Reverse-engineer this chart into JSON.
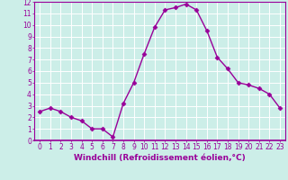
{
  "x": [
    0,
    1,
    2,
    3,
    4,
    5,
    6,
    7,
    8,
    9,
    10,
    11,
    12,
    13,
    14,
    15,
    16,
    17,
    18,
    19,
    20,
    21,
    22,
    23
  ],
  "y": [
    2.5,
    2.8,
    2.5,
    2.0,
    1.7,
    1.0,
    1.0,
    0.3,
    3.2,
    5.0,
    7.5,
    9.8,
    11.3,
    11.5,
    11.8,
    11.3,
    9.5,
    7.2,
    6.2,
    5.0,
    4.8,
    4.5,
    4.0,
    2.8
  ],
  "line_color": "#990099",
  "marker": "D",
  "markersize": 2.5,
  "linewidth": 1.0,
  "xlabel": "Windchill (Refroidissement éolien,°C)",
  "xlim": [
    -0.5,
    23.5
  ],
  "ylim": [
    0,
    12
  ],
  "xticks": [
    0,
    1,
    2,
    3,
    4,
    5,
    6,
    7,
    8,
    9,
    10,
    11,
    12,
    13,
    14,
    15,
    16,
    17,
    18,
    19,
    20,
    21,
    22,
    23
  ],
  "yticks": [
    0,
    1,
    2,
    3,
    4,
    5,
    6,
    7,
    8,
    9,
    10,
    11,
    12
  ],
  "background_color": "#cceee8",
  "grid_color": "#ffffff",
  "tick_color": "#990099",
  "label_color": "#990099",
  "tick_fontsize": 5.5,
  "xlabel_fontsize": 6.5,
  "spine_color": "#990099"
}
